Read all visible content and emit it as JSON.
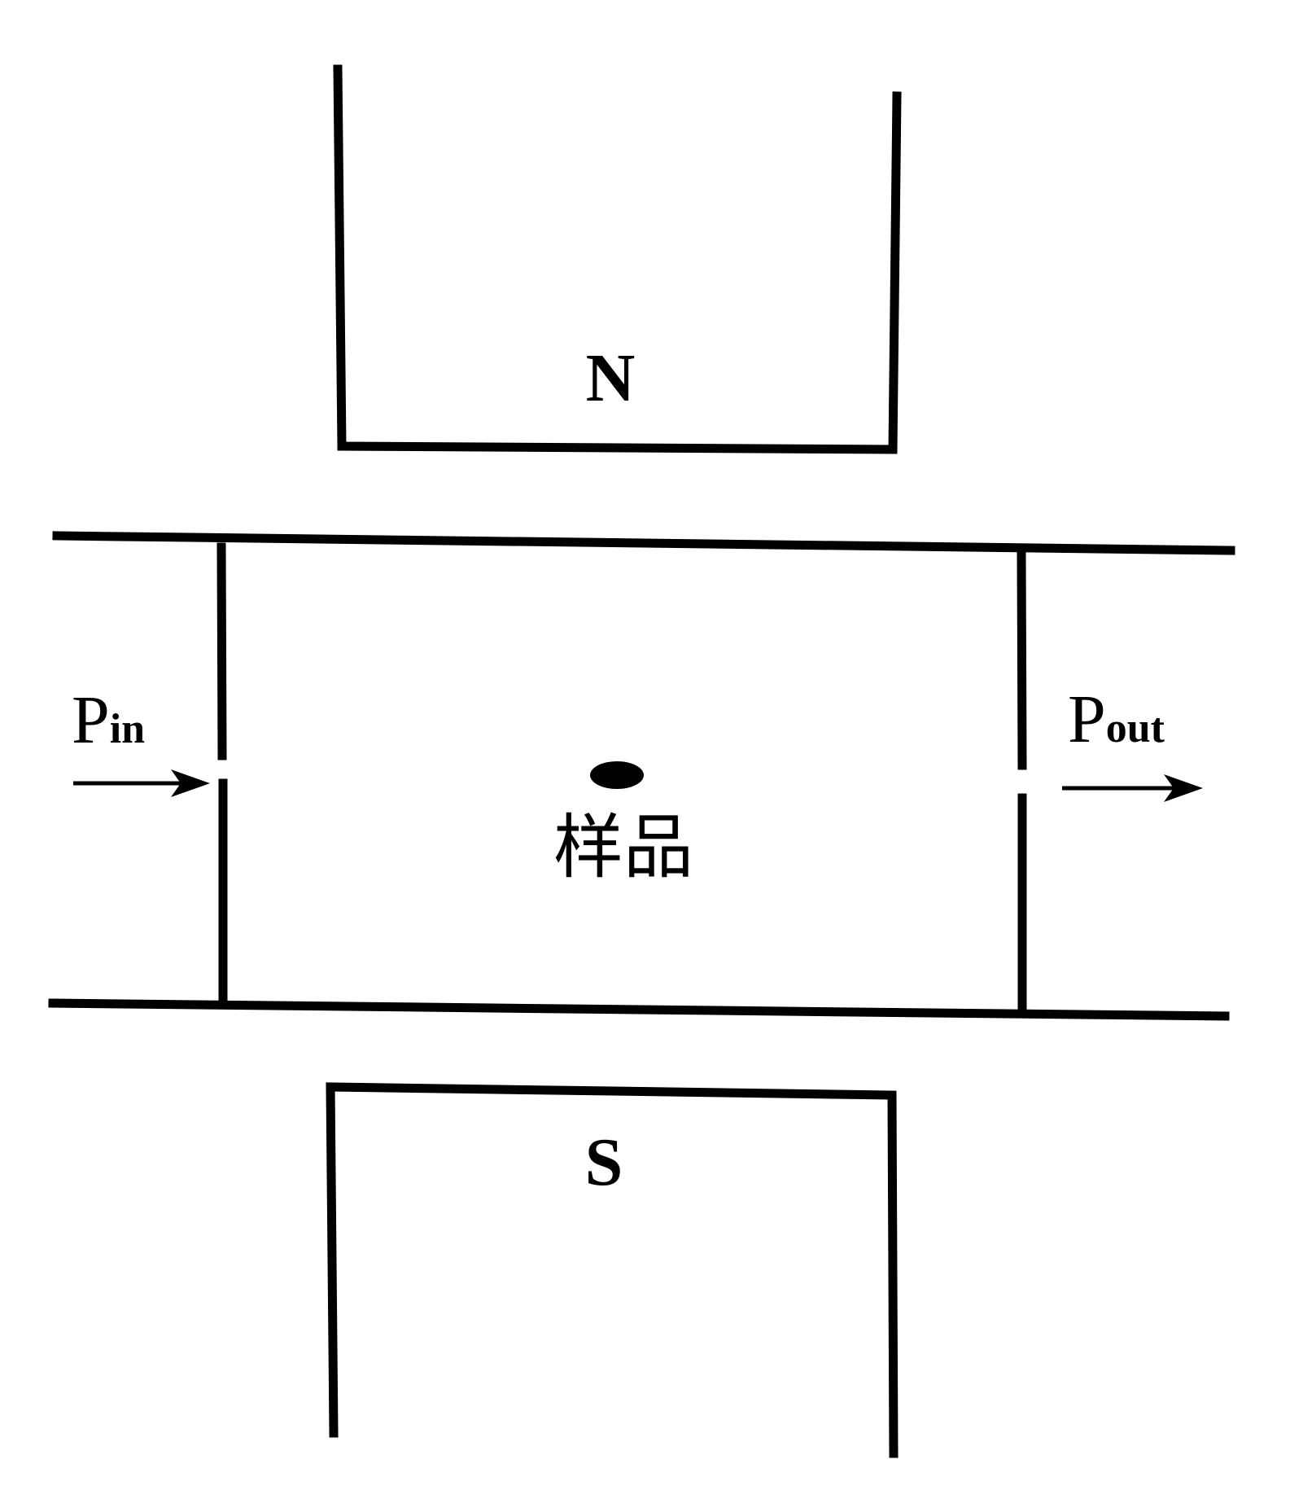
{
  "labels": {
    "north_pole": "N",
    "south_pole": "S",
    "input_power_main": "P",
    "input_power_sub": "in",
    "output_power_main": "P",
    "output_power_sub": "out",
    "sample": "样品"
  },
  "colors": {
    "line": "#000000",
    "background": "#ffffff"
  }
}
